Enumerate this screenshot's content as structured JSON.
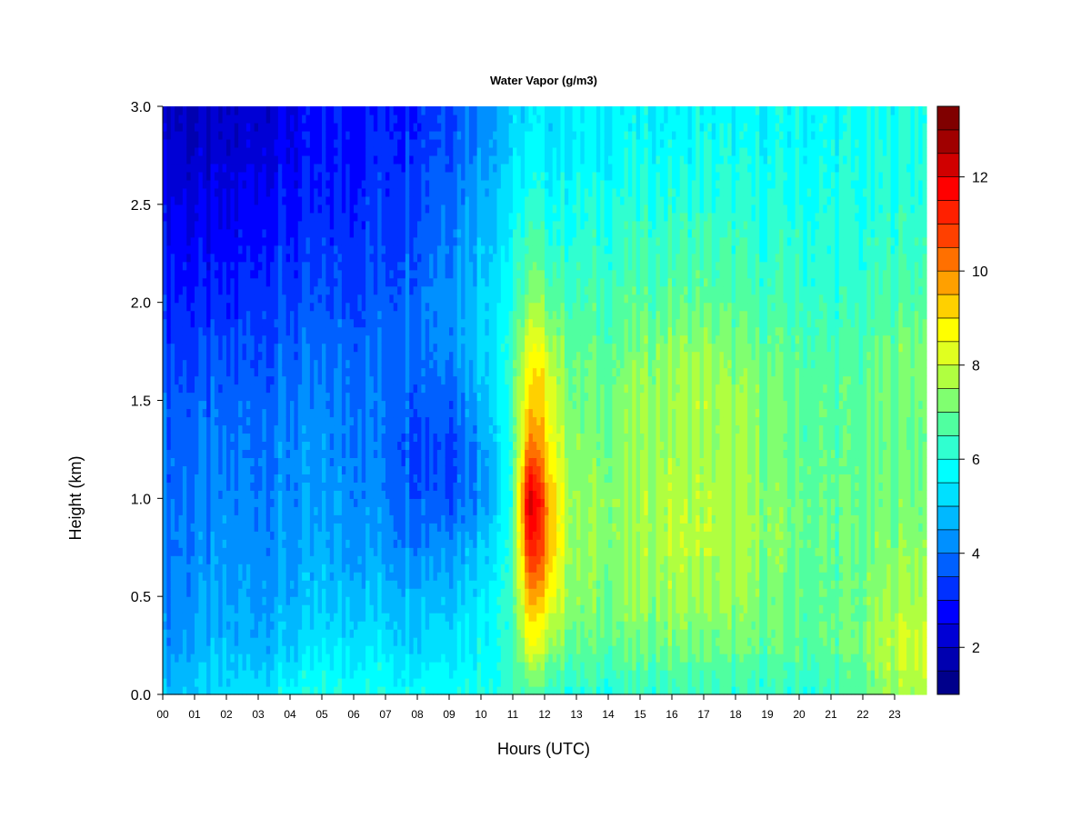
{
  "chart_data": {
    "type": "heatmap",
    "title": "Water Vapor (g/m3)",
    "xlabel": "Hours (UTC)",
    "ylabel": "Height (km)",
    "xlim": [
      0,
      24
    ],
    "ylim": [
      0.0,
      3.0
    ],
    "x_ticks": [
      "00",
      "01",
      "02",
      "03",
      "04",
      "05",
      "06",
      "07",
      "08",
      "09",
      "10",
      "11",
      "12",
      "13",
      "14",
      "15",
      "16",
      "17",
      "18",
      "19",
      "20",
      "21",
      "22",
      "23"
    ],
    "y_ticks": [
      "0.0",
      "0.5",
      "1.0",
      "1.5",
      "2.0",
      "2.5",
      "3.0"
    ],
    "colorbar": {
      "min": 1,
      "max": 13.5,
      "levels": 25,
      "ticks": [
        "2",
        "4",
        "6",
        "8",
        "10",
        "12"
      ],
      "colors": [
        "#00008b",
        "#0000b0",
        "#0000d5",
        "#0000ff",
        "#0030ff",
        "#0060ff",
        "#0090ff",
        "#00b8ff",
        "#00e0ff",
        "#00ffff",
        "#30ffd0",
        "#50ffa0",
        "#80ff70",
        "#b0ff40",
        "#e0ff20",
        "#ffff00",
        "#ffd000",
        "#ffa000",
        "#ff7000",
        "#ff4000",
        "#ff2000",
        "#ff0000",
        "#d00000",
        "#a00000",
        "#800000"
      ]
    },
    "hours": [
      0,
      1,
      2,
      3,
      4,
      5,
      6,
      7,
      8,
      9,
      10,
      11,
      11.5,
      12,
      12.5,
      13,
      14,
      15,
      16,
      17,
      18,
      19,
      20,
      21,
      22,
      23,
      24
    ],
    "heights_km": [
      0.0,
      0.25,
      0.5,
      0.75,
      1.0,
      1.25,
      1.5,
      1.75,
      2.0,
      2.25,
      2.5,
      2.75,
      3.0
    ],
    "values": [
      [
        4.8,
        4.3,
        4.1,
        4.0,
        3.9,
        3.8,
        3.7,
        3.4,
        3.2,
        3.0,
        2.6,
        2.3,
        2.1
      ],
      [
        5.0,
        4.6,
        4.3,
        4.1,
        4.0,
        3.9,
        3.7,
        3.4,
        3.0,
        2.7,
        2.4,
        2.1,
        1.9
      ],
      [
        5.2,
        4.7,
        4.4,
        4.2,
        4.1,
        3.9,
        3.7,
        3.4,
        3.0,
        2.7,
        2.4,
        2.1,
        2.0
      ],
      [
        5.3,
        4.7,
        4.5,
        4.3,
        4.2,
        4.0,
        3.9,
        3.6,
        3.4,
        3.1,
        2.8,
        2.5,
        2.3
      ],
      [
        5.8,
        5.0,
        4.6,
        4.4,
        4.2,
        4.2,
        4.0,
        3.7,
        3.4,
        3.1,
        2.9,
        2.6,
        2.5
      ],
      [
        6.0,
        5.3,
        4.8,
        4.5,
        4.3,
        4.2,
        4.1,
        3.8,
        3.5,
        3.2,
        3.0,
        2.8,
        2.7
      ],
      [
        6.0,
        5.4,
        4.9,
        4.5,
        4.3,
        4.2,
        4.1,
        3.9,
        3.6,
        3.4,
        3.2,
        3.0,
        2.9
      ],
      [
        6.0,
        5.4,
        4.9,
        4.4,
        4.1,
        4.0,
        4.0,
        3.9,
        3.7,
        3.5,
        3.3,
        3.2,
        3.1
      ],
      [
        6.0,
        5.3,
        4.9,
        4.3,
        3.8,
        3.6,
        3.8,
        4.0,
        4.0,
        3.8,
        3.6,
        3.4,
        3.3
      ],
      [
        6.0,
        5.4,
        5.0,
        4.4,
        3.7,
        3.5,
        3.9,
        4.3,
        4.4,
        4.2,
        4.0,
        3.7,
        3.6
      ],
      [
        6.1,
        5.8,
        5.5,
        5.0,
        4.4,
        4.4,
        4.8,
        5.1,
        5.1,
        4.9,
        4.7,
        4.4,
        4.3
      ],
      [
        6.3,
        6.3,
        6.4,
        6.4,
        6.2,
        6.2,
        6.4,
        6.3,
        6.0,
        5.8,
        5.5,
        5.2,
        5.0
      ],
      [
        6.5,
        8.4,
        9.6,
        11.4,
        12.5,
        10.2,
        9.2,
        8.5,
        7.4,
        6.7,
        6.1,
        5.6,
        5.3
      ],
      [
        6.4,
        7.9,
        9.2,
        10.4,
        10.5,
        9.4,
        9.0,
        8.3,
        7.2,
        6.5,
        6.0,
        5.5,
        5.3
      ],
      [
        6.3,
        7.2,
        8.0,
        8.4,
        8.4,
        8.0,
        7.8,
        7.3,
        6.8,
        6.3,
        5.9,
        5.5,
        5.3
      ],
      [
        6.1,
        6.8,
        7.2,
        7.3,
        7.3,
        7.2,
        7.0,
        6.8,
        6.5,
        6.2,
        5.9,
        5.6,
        5.5
      ],
      [
        6.1,
        6.9,
        7.2,
        7.4,
        7.4,
        7.2,
        7.1,
        6.9,
        6.6,
        6.3,
        6.0,
        5.7,
        5.5
      ],
      [
        6.2,
        7.0,
        7.4,
        7.6,
        7.6,
        7.4,
        7.4,
        7.2,
        6.7,
        6.4,
        6.1,
        5.8,
        5.6
      ],
      [
        6.3,
        7.1,
        7.6,
        7.8,
        7.8,
        7.6,
        7.6,
        7.4,
        6.9,
        6.5,
        6.2,
        5.8,
        5.6
      ],
      [
        6.3,
        7.0,
        7.5,
        7.8,
        7.8,
        7.6,
        7.7,
        7.4,
        6.9,
        6.5,
        6.2,
        5.9,
        5.7
      ],
      [
        6.3,
        7.0,
        7.4,
        7.6,
        7.6,
        7.4,
        7.4,
        7.1,
        6.7,
        6.4,
        6.1,
        5.8,
        5.6
      ],
      [
        6.2,
        6.9,
        7.1,
        7.3,
        7.3,
        7.2,
        7.2,
        6.9,
        6.5,
        6.2,
        6.0,
        5.8,
        5.7
      ],
      [
        6.2,
        6.8,
        6.9,
        7.0,
        7.0,
        6.9,
        6.9,
        6.7,
        6.4,
        6.2,
        6.0,
        5.8,
        5.7
      ],
      [
        6.3,
        6.8,
        6.8,
        6.9,
        6.9,
        6.8,
        6.8,
        6.6,
        6.3,
        6.1,
        5.9,
        5.8,
        5.7
      ],
      [
        6.7,
        7.1,
        7.0,
        7.0,
        6.9,
        6.8,
        6.8,
        6.6,
        6.3,
        6.1,
        6.0,
        5.9,
        5.8
      ],
      [
        7.6,
        8.0,
        7.6,
        7.3,
        7.1,
        7.0,
        7.1,
        7.1,
        6.7,
        6.4,
        6.2,
        6.0,
        5.9
      ],
      [
        7.8,
        8.2,
        7.8,
        7.4,
        7.2,
        7.0,
        7.2,
        7.3,
        6.8,
        6.5,
        6.3,
        6.1,
        6.0
      ]
    ]
  }
}
